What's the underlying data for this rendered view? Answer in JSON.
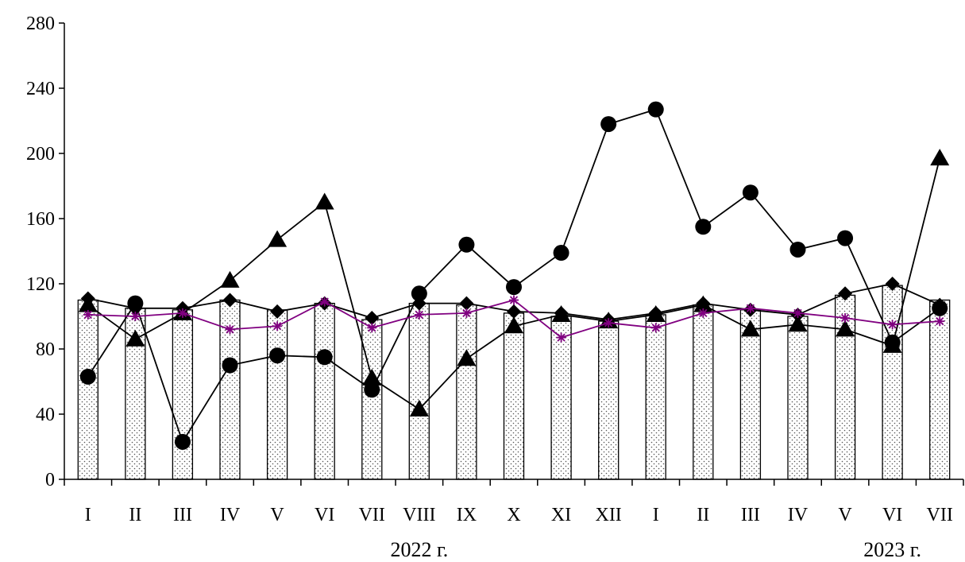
{
  "chart_data": {
    "type": "bar",
    "title": "",
    "xlabel": "",
    "ylabel": "",
    "ylim": [
      0,
      280
    ],
    "yticks": [
      0,
      40,
      80,
      120,
      160,
      200,
      240,
      280
    ],
    "grid": false,
    "categories": [
      "I",
      "II",
      "III",
      "IV",
      "V",
      "VI",
      "VII",
      "VIII",
      "IX",
      "X",
      "XI",
      "XII",
      "I",
      "II",
      "III",
      "IV",
      "V",
      "VI",
      "VII"
    ],
    "year_labels": [
      {
        "text": "2022 г.",
        "category_index": 7
      },
      {
        "text": "2023 г.",
        "category_index": 17
      }
    ],
    "series": [
      {
        "type": "bar",
        "style": "dotted-fill",
        "color": "#000000",
        "values": [
          110,
          105,
          104,
          110,
          104,
          108,
          98,
          108,
          107,
          102,
          100,
          97,
          101,
          107,
          104,
          100,
          113,
          119,
          110
        ]
      },
      {
        "type": "line",
        "marker": "diamond",
        "color": "#000000",
        "values": [
          111,
          105,
          105,
          110,
          103,
          108,
          99,
          108,
          108,
          103,
          102,
          98,
          102,
          108,
          104,
          101,
          114,
          120,
          107
        ]
      },
      {
        "type": "line",
        "marker": "circle",
        "color": "#000000",
        "values": [
          63,
          108,
          23,
          70,
          76,
          75,
          55,
          114,
          144,
          118,
          139,
          218,
          227,
          155,
          176,
          141,
          148,
          84,
          105
        ]
      },
      {
        "type": "line",
        "marker": "triangle",
        "color": "#000000",
        "values": [
          107,
          86,
          102,
          122,
          147,
          170,
          62,
          43,
          74,
          94,
          101,
          97,
          101,
          107,
          92,
          95,
          92,
          82,
          197
        ]
      },
      {
        "type": "line",
        "marker": "asterisk",
        "color": "#800080",
        "values": [
          101,
          100,
          102,
          92,
          94,
          109,
          93,
          101,
          102,
          110,
          87,
          96,
          93,
          102,
          105,
          102,
          99,
          95,
          97
        ]
      }
    ]
  }
}
